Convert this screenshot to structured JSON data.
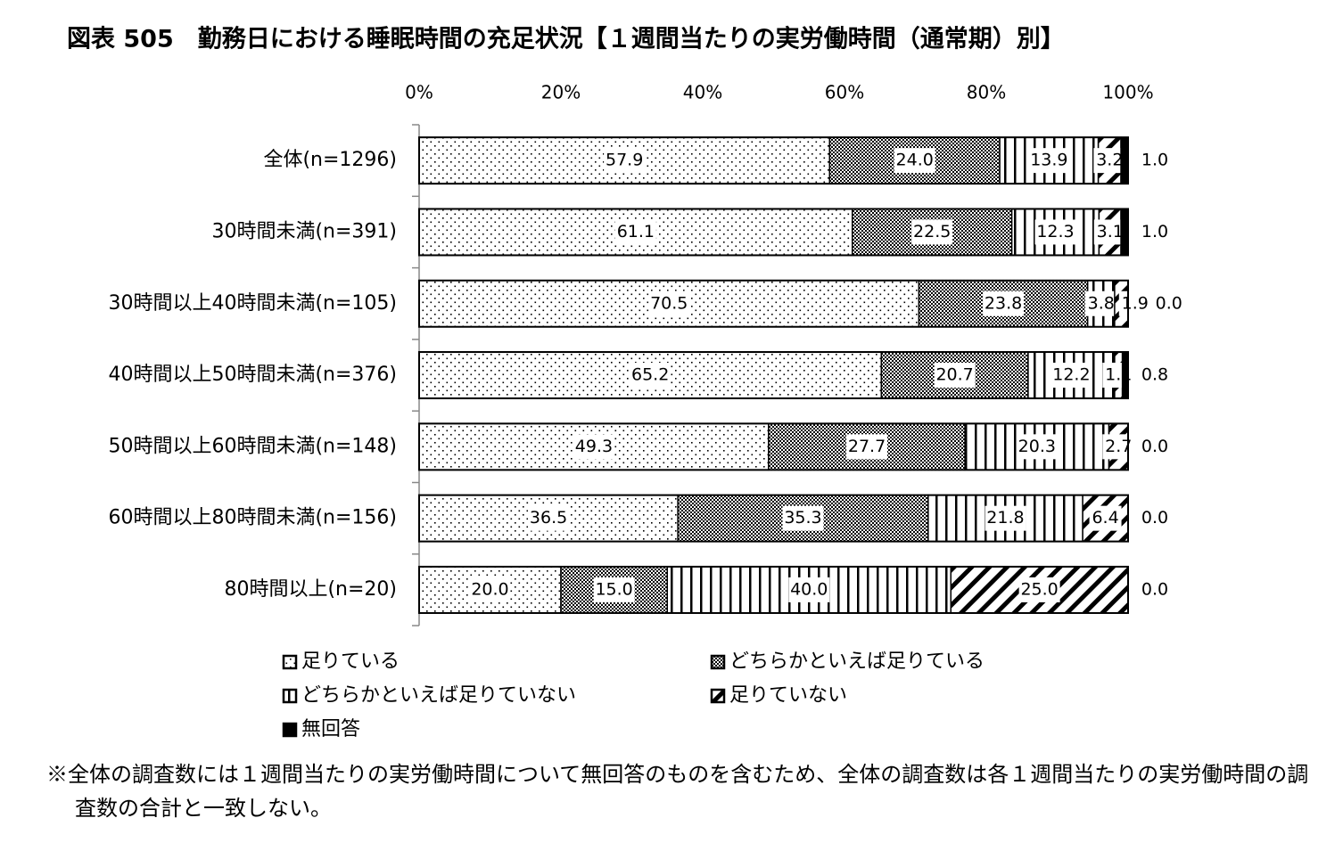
{
  "chart_data": {
    "type": "stacked-bar-horizontal",
    "title": "図表 505　勤務日における睡眠時間の充足状況【１週間当たりの実労働時間（通常期）別】",
    "categories": [
      "全体(n=1296)",
      "30時間未満(n=391)",
      "30時間以上40時間未満(n=105)",
      "40時間以上50時間未満(n=376)",
      "50時間以上60時間未満(n=148)",
      "60時間以上80時間未満(n=156)",
      "80時間以上(n=20)"
    ],
    "series": [
      {
        "name": "足りている",
        "color": "#000000",
        "pattern": "dots",
        "values": [
          57.9,
          61.1,
          70.5,
          65.2,
          49.3,
          36.5,
          20.0
        ],
        "value_labels": [
          "57.9",
          "61.1",
          "70.5",
          "65.2",
          "49.3",
          "36.5",
          "20.0"
        ]
      },
      {
        "name": "どちらかといえば足りている",
        "color": "#000000",
        "pattern": "checker",
        "values": [
          24.0,
          22.5,
          23.8,
          20.7,
          27.7,
          35.3,
          15.0
        ],
        "value_labels": [
          "24.0",
          "22.5",
          "23.8",
          "20.7",
          "27.7",
          "35.3",
          "15.0"
        ]
      },
      {
        "name": "どちらかといえば足りていない",
        "color": "#000000",
        "pattern": "vertical",
        "values": [
          13.9,
          12.3,
          3.8,
          12.2,
          20.3,
          21.8,
          40.0
        ],
        "value_labels": [
          "13.9",
          "12.3",
          "3.8",
          "12.2",
          "20.3",
          "21.8",
          "40.0"
        ]
      },
      {
        "name": "足りていない",
        "color": "#000000",
        "pattern": "diagonal",
        "values": [
          3.2,
          3.1,
          1.9,
          1.1,
          2.7,
          6.4,
          25.0
        ],
        "value_labels": [
          "3.2",
          "3.1",
          "1.9",
          "1.1",
          "2.7",
          "6.4",
          "25.0"
        ]
      },
      {
        "name": "無回答",
        "color": "#000000",
        "pattern": "solid",
        "values": [
          1.0,
          1.0,
          0.0,
          0.8,
          0.0,
          0.0,
          0.0
        ],
        "value_labels": [
          "1.0",
          "1.0",
          "0.0",
          "0.8",
          "0.0",
          "0.0",
          "0.0"
        ]
      }
    ],
    "xlim": [
      0,
      100
    ],
    "xticks": [
      {
        "value": 0,
        "label": "0%"
      },
      {
        "value": 20,
        "label": "20%"
      },
      {
        "value": 40,
        "label": "40%"
      },
      {
        "value": 60,
        "label": "60%"
      },
      {
        "value": 80,
        "label": "80%"
      },
      {
        "value": 100,
        "label": "100%"
      }
    ],
    "note": "※全体の調査数には１週間当たりの実労働時間について無回答のものを含むため、全体の調査数は各１週間当たりの実労働時間の調査数の合計と一致しない。"
  }
}
